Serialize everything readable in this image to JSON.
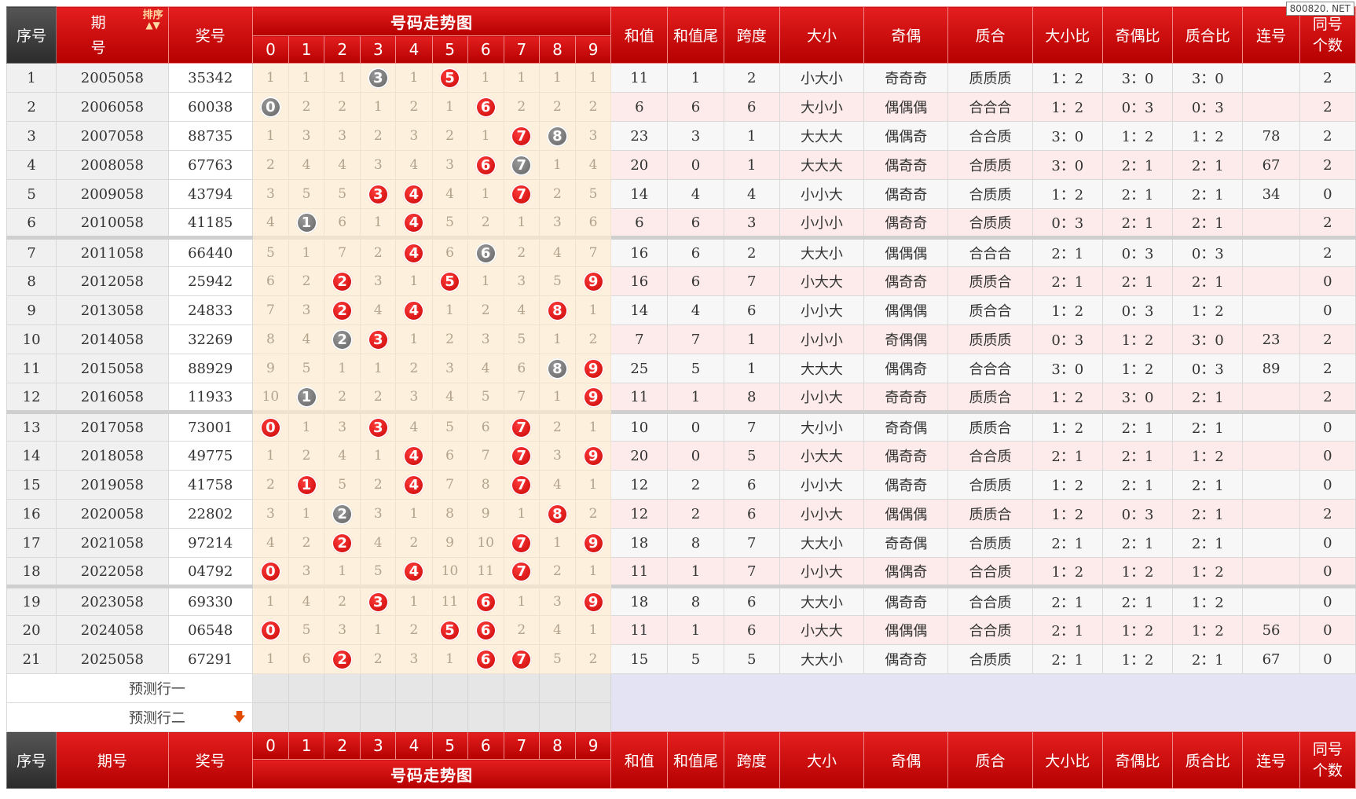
{
  "watermark": "800820. NET",
  "header": {
    "seq": "序号",
    "issue_top": "期",
    "issue_bottom": "号",
    "sort": "排序",
    "issue_footer": "期号",
    "prize": "奖号",
    "trend": "号码走势图",
    "digits": [
      "0",
      "1",
      "2",
      "3",
      "4",
      "5",
      "6",
      "7",
      "8",
      "9"
    ],
    "sum": "和值",
    "sum_tail": "和值尾",
    "span": "跨度",
    "size": "大小",
    "parity": "奇偶",
    "prime": "质合",
    "size_ratio": "大小比",
    "parity_ratio": "奇偶比",
    "prime_ratio": "质合比",
    "consec": "连号",
    "same_top": "同号",
    "same_bottom": "个数"
  },
  "prediction": {
    "row1": "预测行一",
    "row2": "预测行二"
  },
  "rows": [
    {
      "seq": "1",
      "issue": "2005058",
      "prize": "35342",
      "cells": [
        "1",
        "1",
        "1",
        "3",
        "1",
        "5",
        "1",
        "1",
        "1",
        "1"
      ],
      "balls": {
        "3": "grey",
        "5": "red"
      },
      "sum": "11",
      "tail": "1",
      "span": "2",
      "size": "小大小",
      "parity": "奇奇奇",
      "prime": "质质质",
      "sr": "1：2",
      "pr": "3：0",
      "qr": "3：0",
      "consec": "",
      "same": "2"
    },
    {
      "seq": "2",
      "issue": "2006058",
      "prize": "60038",
      "cells": [
        "0",
        "2",
        "2",
        "1",
        "2",
        "1",
        "6",
        "2",
        "2",
        "2"
      ],
      "balls": {
        "0": "grey",
        "6": "red"
      },
      "sum": "6",
      "tail": "6",
      "span": "6",
      "size": "大小小",
      "parity": "偶偶偶",
      "prime": "合合合",
      "sr": "1：2",
      "pr": "0：3",
      "qr": "0：3",
      "consec": "",
      "same": "2"
    },
    {
      "seq": "3",
      "issue": "2007058",
      "prize": "88735",
      "cells": [
        "1",
        "3",
        "3",
        "2",
        "3",
        "2",
        "1",
        "7",
        "8",
        "3"
      ],
      "balls": {
        "7": "red",
        "8": "grey"
      },
      "sum": "23",
      "tail": "3",
      "span": "1",
      "size": "大大大",
      "parity": "偶偶奇",
      "prime": "合合质",
      "sr": "3：0",
      "pr": "1：2",
      "qr": "1：2",
      "consec": "78",
      "same": "2"
    },
    {
      "seq": "4",
      "issue": "2008058",
      "prize": "67763",
      "cells": [
        "2",
        "4",
        "4",
        "3",
        "4",
        "3",
        "6",
        "7",
        "1",
        "4"
      ],
      "balls": {
        "6": "red",
        "7": "grey"
      },
      "sum": "20",
      "tail": "0",
      "span": "1",
      "size": "大大大",
      "parity": "偶奇奇",
      "prime": "合质质",
      "sr": "3：0",
      "pr": "2：1",
      "qr": "2：1",
      "consec": "67",
      "same": "2"
    },
    {
      "seq": "5",
      "issue": "2009058",
      "prize": "43794",
      "cells": [
        "3",
        "5",
        "5",
        "3",
        "4",
        "4",
        "1",
        "7",
        "2",
        "5"
      ],
      "balls": {
        "3": "red",
        "4": "red",
        "7": "red"
      },
      "sum": "14",
      "tail": "4",
      "span": "4",
      "size": "小小大",
      "parity": "偶奇奇",
      "prime": "合质质",
      "sr": "1：2",
      "pr": "2：1",
      "qr": "2：1",
      "consec": "34",
      "same": "0"
    },
    {
      "seq": "6",
      "issue": "2010058",
      "prize": "41185",
      "cells": [
        "4",
        "1",
        "6",
        "1",
        "4",
        "5",
        "2",
        "1",
        "3",
        "6"
      ],
      "balls": {
        "1": "grey",
        "4": "red"
      },
      "sum": "6",
      "tail": "6",
      "span": "3",
      "size": "小小小",
      "parity": "偶奇奇",
      "prime": "合质质",
      "sr": "0：3",
      "pr": "2：1",
      "qr": "2：1",
      "consec": "",
      "same": "2"
    },
    {
      "seq": "7",
      "issue": "2011058",
      "prize": "66440",
      "cells": [
        "5",
        "1",
        "7",
        "2",
        "4",
        "6",
        "6",
        "2",
        "4",
        "7"
      ],
      "balls": {
        "4": "red",
        "6": "grey"
      },
      "sum": "16",
      "tail": "6",
      "span": "2",
      "size": "大大小",
      "parity": "偶偶偶",
      "prime": "合合合",
      "sr": "2：1",
      "pr": "0：3",
      "qr": "0：3",
      "consec": "",
      "same": "2"
    },
    {
      "seq": "8",
      "issue": "2012058",
      "prize": "25942",
      "cells": [
        "6",
        "2",
        "2",
        "3",
        "1",
        "5",
        "1",
        "3",
        "5",
        "9"
      ],
      "balls": {
        "2": "red",
        "5": "red",
        "9": "red"
      },
      "sum": "16",
      "tail": "6",
      "span": "7",
      "size": "小大大",
      "parity": "偶奇奇",
      "prime": "质质合",
      "sr": "2：1",
      "pr": "2：1",
      "qr": "2：1",
      "consec": "",
      "same": "0"
    },
    {
      "seq": "9",
      "issue": "2013058",
      "prize": "24833",
      "cells": [
        "7",
        "3",
        "2",
        "4",
        "4",
        "1",
        "2",
        "4",
        "8",
        "1"
      ],
      "balls": {
        "2": "red",
        "4": "red",
        "8": "red"
      },
      "sum": "14",
      "tail": "4",
      "span": "6",
      "size": "小小大",
      "parity": "偶偶偶",
      "prime": "质合合",
      "sr": "1：2",
      "pr": "0：3",
      "qr": "1：2",
      "consec": "",
      "same": "0"
    },
    {
      "seq": "10",
      "issue": "2014058",
      "prize": "32269",
      "cells": [
        "8",
        "4",
        "2",
        "3",
        "1",
        "2",
        "3",
        "5",
        "1",
        "2"
      ],
      "balls": {
        "2": "grey",
        "3": "red"
      },
      "sum": "7",
      "tail": "7",
      "span": "1",
      "size": "小小小",
      "parity": "奇偶偶",
      "prime": "质质质",
      "sr": "0：3",
      "pr": "1：2",
      "qr": "3：0",
      "consec": "23",
      "same": "2"
    },
    {
      "seq": "11",
      "issue": "2015058",
      "prize": "88929",
      "cells": [
        "9",
        "5",
        "1",
        "1",
        "2",
        "3",
        "4",
        "6",
        "8",
        "9"
      ],
      "balls": {
        "8": "grey",
        "9": "red"
      },
      "sum": "25",
      "tail": "5",
      "span": "1",
      "size": "大大大",
      "parity": "偶偶奇",
      "prime": "合合合",
      "sr": "3：0",
      "pr": "1：2",
      "qr": "0：3",
      "consec": "89",
      "same": "2"
    },
    {
      "seq": "12",
      "issue": "2016058",
      "prize": "11933",
      "cells": [
        "10",
        "1",
        "2",
        "2",
        "3",
        "4",
        "5",
        "7",
        "1",
        "9"
      ],
      "balls": {
        "1": "grey",
        "9": "red"
      },
      "sum": "11",
      "tail": "1",
      "span": "8",
      "size": "小小大",
      "parity": "奇奇奇",
      "prime": "质质合",
      "sr": "1：2",
      "pr": "3：0",
      "qr": "2：1",
      "consec": "",
      "same": "2"
    },
    {
      "seq": "13",
      "issue": "2017058",
      "prize": "73001",
      "cells": [
        "0",
        "1",
        "3",
        "3",
        "4",
        "5",
        "6",
        "7",
        "2",
        "1"
      ],
      "balls": {
        "0": "red",
        "3": "red",
        "7": "red"
      },
      "sum": "10",
      "tail": "0",
      "span": "7",
      "size": "大小小",
      "parity": "奇奇偶",
      "prime": "质质合",
      "sr": "1：2",
      "pr": "2：1",
      "qr": "2：1",
      "consec": "",
      "same": "0"
    },
    {
      "seq": "14",
      "issue": "2018058",
      "prize": "49775",
      "cells": [
        "1",
        "2",
        "4",
        "1",
        "4",
        "6",
        "7",
        "7",
        "3",
        "9"
      ],
      "balls": {
        "4": "red",
        "7": "red",
        "9": "red"
      },
      "sum": "20",
      "tail": "0",
      "span": "5",
      "size": "小大大",
      "parity": "偶奇奇",
      "prime": "合合质",
      "sr": "2：1",
      "pr": "2：1",
      "qr": "1：2",
      "consec": "",
      "same": "0"
    },
    {
      "seq": "15",
      "issue": "2019058",
      "prize": "41758",
      "cells": [
        "2",
        "1",
        "5",
        "2",
        "4",
        "7",
        "8",
        "7",
        "4",
        "1"
      ],
      "balls": {
        "1": "red",
        "4": "red",
        "7": "red"
      },
      "sum": "12",
      "tail": "2",
      "span": "6",
      "size": "小小大",
      "parity": "偶奇奇",
      "prime": "合质质",
      "sr": "1：2",
      "pr": "2：1",
      "qr": "2：1",
      "consec": "",
      "same": "0"
    },
    {
      "seq": "16",
      "issue": "2020058",
      "prize": "22802",
      "cells": [
        "3",
        "1",
        "2",
        "3",
        "1",
        "8",
        "9",
        "1",
        "8",
        "2"
      ],
      "balls": {
        "2": "grey",
        "8": "red"
      },
      "sum": "12",
      "tail": "2",
      "span": "6",
      "size": "小小大",
      "parity": "偶偶偶",
      "prime": "质质合",
      "sr": "1：2",
      "pr": "0：3",
      "qr": "2：1",
      "consec": "",
      "same": "2"
    },
    {
      "seq": "17",
      "issue": "2021058",
      "prize": "97214",
      "cells": [
        "4",
        "2",
        "2",
        "4",
        "2",
        "9",
        "10",
        "7",
        "1",
        "9"
      ],
      "balls": {
        "2": "red",
        "7": "red",
        "9": "red"
      },
      "sum": "18",
      "tail": "8",
      "span": "7",
      "size": "大大小",
      "parity": "奇奇偶",
      "prime": "合质质",
      "sr": "2：1",
      "pr": "2：1",
      "qr": "2：1",
      "consec": "",
      "same": "0"
    },
    {
      "seq": "18",
      "issue": "2022058",
      "prize": "04792",
      "cells": [
        "0",
        "3",
        "1",
        "5",
        "4",
        "10",
        "11",
        "7",
        "2",
        "1"
      ],
      "balls": {
        "0": "red",
        "4": "red",
        "7": "red"
      },
      "sum": "11",
      "tail": "1",
      "span": "7",
      "size": "小小大",
      "parity": "偶偶奇",
      "prime": "合合质",
      "sr": "1：2",
      "pr": "1：2",
      "qr": "1：2",
      "consec": "",
      "same": "0"
    },
    {
      "seq": "19",
      "issue": "2023058",
      "prize": "69330",
      "cells": [
        "1",
        "4",
        "2",
        "3",
        "1",
        "11",
        "6",
        "1",
        "3",
        "9"
      ],
      "balls": {
        "3": "red",
        "6": "red",
        "9": "red"
      },
      "sum": "18",
      "tail": "8",
      "span": "6",
      "size": "大大小",
      "parity": "偶奇奇",
      "prime": "合合质",
      "sr": "2：1",
      "pr": "2：1",
      "qr": "1：2",
      "consec": "",
      "same": "0"
    },
    {
      "seq": "20",
      "issue": "2024058",
      "prize": "06548",
      "cells": [
        "0",
        "5",
        "3",
        "1",
        "2",
        "5",
        "6",
        "2",
        "4",
        "1"
      ],
      "balls": {
        "0": "red",
        "5": "red",
        "6": "red"
      },
      "sum": "11",
      "tail": "1",
      "span": "6",
      "size": "小大大",
      "parity": "偶偶偶",
      "prime": "合合质",
      "sr": "2：1",
      "pr": "1：2",
      "qr": "1：2",
      "consec": "56",
      "same": "0"
    },
    {
      "seq": "21",
      "issue": "2025058",
      "prize": "67291",
      "cells": [
        "1",
        "6",
        "2",
        "2",
        "3",
        "1",
        "6",
        "7",
        "5",
        "2"
      ],
      "balls": {
        "2": "red",
        "6": "red",
        "7": "red"
      },
      "sum": "15",
      "tail": "5",
      "span": "5",
      "size": "大大小",
      "parity": "偶奇奇",
      "prime": "合质质",
      "sr": "2：1",
      "pr": "1：2",
      "qr": "2：1",
      "consec": "67",
      "same": "0"
    }
  ]
}
